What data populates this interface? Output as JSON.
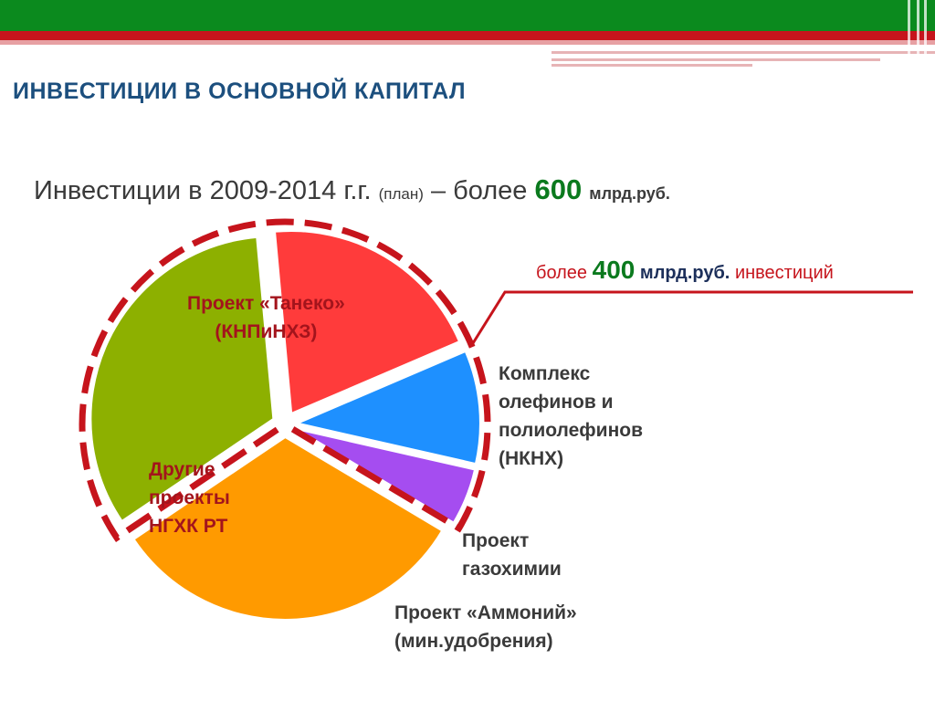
{
  "title": "ИНВЕСТИЦИИ В ОСНОВНОЙ КАПИТАЛ",
  "subtitle": {
    "text": "Инвестиции в 2009-2014 г.г.",
    "qualifier": "(план)",
    "dash": "– более",
    "value": "600",
    "unit": "млрд.руб."
  },
  "note": {
    "prefix": "более",
    "value": "400",
    "unit": "млрд.руб.",
    "suffix": "инвестиций"
  },
  "colors": {
    "green": "#8db000",
    "red": "#ff3b3b",
    "blue": "#1e90ff",
    "purple": "#a54df0",
    "orange": "#ff9a00",
    "highlight": "#c6141c"
  },
  "chart_data": {
    "type": "pie",
    "total_label": "более 600 млрд.руб.",
    "slices": [
      {
        "label": "Проект «Taнеко»\n(КНПиНХЗ)",
        "value": 33,
        "color": "#8db000"
      },
      {
        "label": "Комплекс\nолефинов и\nполиолефинов\n(НКНХ)",
        "value": 20,
        "color": "#ff3b3b"
      },
      {
        "label": "Проект\nгазохимии",
        "value": 10,
        "color": "#1e90ff"
      },
      {
        "label": "Проект «Аммоний»\n(мин.удобрения)",
        "value": 5,
        "color": "#a54df0"
      },
      {
        "label": "Другие\nпроекты\nНГХК РТ",
        "value": 32,
        "color": "#ff9a00"
      }
    ],
    "highlighted_slices": [
      0,
      1,
      2,
      3
    ],
    "highlighted_total": "более 400 млрд.руб. инвестиций"
  }
}
